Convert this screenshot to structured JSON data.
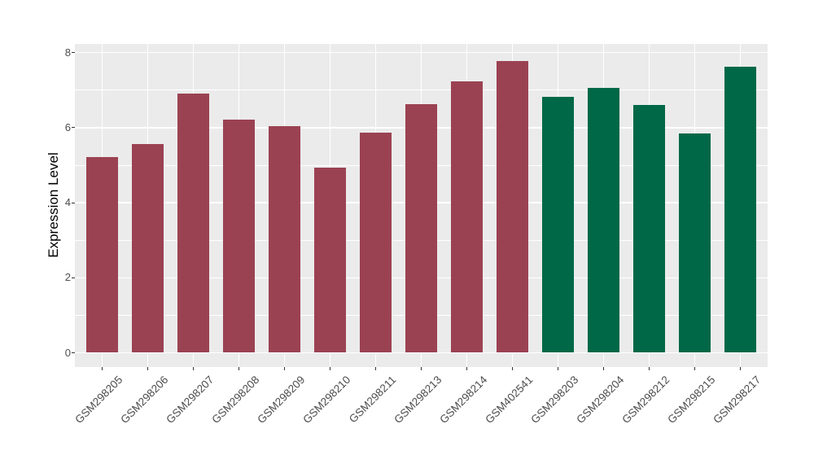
{
  "figure": {
    "background_color": "#ffffff",
    "panel_background_color": "#ebebeb",
    "gridline_color": "#ffffff",
    "axis_text_color": "#4d4d4d",
    "axis_title_color": "#000000"
  },
  "chart_data": {
    "type": "bar",
    "title": "",
    "xlabel": "",
    "ylabel": "Expression Level",
    "categories": [
      "GSM298205",
      "GSM298206",
      "GSM298207",
      "GSM298208",
      "GSM298209",
      "GSM298210",
      "GSM298211",
      "GSM298213",
      "GSM298214",
      "GSM402541",
      "GSM298203",
      "GSM298204",
      "GSM298212",
      "GSM298215",
      "GSM298217"
    ],
    "values": [
      5.21,
      5.57,
      6.9,
      6.22,
      6.04,
      4.93,
      5.87,
      6.63,
      7.23,
      7.77,
      6.83,
      7.07,
      6.6,
      5.84,
      7.62
    ],
    "bar_colors": [
      "#9b4252",
      "#9b4252",
      "#9b4252",
      "#9b4252",
      "#9b4252",
      "#9b4252",
      "#9b4252",
      "#9b4252",
      "#9b4252",
      "#9b4252",
      "#006847",
      "#006847",
      "#006847",
      "#006847",
      "#006847"
    ],
    "group_colors": {
      "left_group_maroon": "#9b4252",
      "right_group_green": "#006847"
    },
    "ylim": [
      0,
      8.2
    ],
    "yticks": [
      0,
      2,
      4,
      6,
      8
    ],
    "minor_yticks": [
      1,
      3,
      5,
      7
    ],
    "grid": true,
    "legend_position": "none",
    "x_label_rotation_deg": 45
  }
}
